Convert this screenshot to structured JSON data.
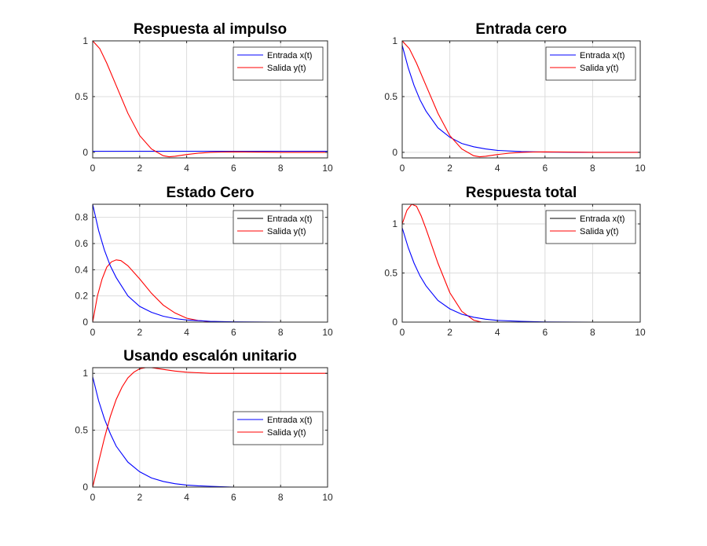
{
  "colors": {
    "input_blue": "#0000ff",
    "input_black": "#000000",
    "output_red": "#ff0000",
    "grid": "#dcdcdc",
    "axis": "#262626"
  },
  "chart_data": [
    {
      "type": "line",
      "title": "Respuesta al impulso",
      "xlim": [
        0,
        10
      ],
      "ylim": [
        -0.05,
        1.0
      ],
      "xticks": [
        "0",
        "2",
        "4",
        "6",
        "8",
        "10"
      ],
      "yticks": [
        {
          "v": 0,
          "label": "0"
        },
        {
          "v": 0.5,
          "label": "0.5"
        },
        {
          "v": 1,
          "label": "1"
        }
      ],
      "grid": true,
      "legend": "top-right",
      "series": [
        {
          "name": "Entrada x(t)",
          "color": "#0000ff",
          "x": [
            0,
            10
          ],
          "y": [
            0.01,
            0.01
          ]
        },
        {
          "name": "Salida y(t)",
          "color": "#ff0000",
          "x": [
            0,
            0.3,
            0.6,
            1.0,
            1.5,
            2.0,
            2.5,
            3.0,
            3.25,
            3.5,
            4.0,
            4.5,
            5.0,
            5.5,
            6.0,
            7.0,
            8.0,
            10
          ],
          "y": [
            1.0,
            0.93,
            0.8,
            0.6,
            0.35,
            0.15,
            0.03,
            -0.03,
            -0.04,
            -0.035,
            -0.02,
            -0.008,
            0.0,
            0.003,
            0.004,
            0.002,
            0.0,
            0.0
          ]
        }
      ]
    },
    {
      "type": "line",
      "title": "Entrada cero",
      "xlim": [
        0,
        10
      ],
      "ylim": [
        -0.05,
        1.0
      ],
      "xticks": [
        "0",
        "2",
        "4",
        "6",
        "8",
        "10"
      ],
      "yticks": [
        {
          "v": 0,
          "label": "0"
        },
        {
          "v": 0.5,
          "label": "0.5"
        },
        {
          "v": 1,
          "label": "1"
        }
      ],
      "grid": true,
      "legend": "top-right",
      "series": [
        {
          "name": "Entrada x(t)",
          "color": "#0000ff",
          "x": [
            0,
            0.25,
            0.5,
            0.75,
            1.0,
            1.5,
            2.0,
            2.5,
            3.0,
            3.5,
            4.0,
            5.0,
            6.0,
            8.0,
            10
          ],
          "y": [
            0.96,
            0.76,
            0.6,
            0.47,
            0.37,
            0.22,
            0.135,
            0.08,
            0.05,
            0.03,
            0.018,
            0.007,
            0.002,
            0.0,
            0.0
          ]
        },
        {
          "name": "Salida y(t)",
          "color": "#ff0000",
          "x": [
            0,
            0.3,
            0.6,
            1.0,
            1.5,
            2.0,
            2.5,
            3.0,
            3.25,
            3.5,
            4.0,
            4.5,
            5.0,
            5.5,
            6.0,
            7.0,
            8.0,
            10
          ],
          "y": [
            1.0,
            0.93,
            0.8,
            0.6,
            0.35,
            0.15,
            0.03,
            -0.03,
            -0.04,
            -0.035,
            -0.02,
            -0.008,
            0.0,
            0.003,
            0.004,
            0.002,
            0.0,
            0.0
          ]
        }
      ]
    },
    {
      "type": "line",
      "title": "Estado Cero",
      "xlim": [
        0,
        10
      ],
      "ylim": [
        0,
        0.9
      ],
      "xticks": [
        "0",
        "2",
        "4",
        "6",
        "8",
        "10"
      ],
      "yticks": [
        {
          "v": 0,
          "label": "0"
        },
        {
          "v": 0.2,
          "label": "0.2"
        },
        {
          "v": 0.4,
          "label": "0.4"
        },
        {
          "v": 0.6,
          "label": "0.6"
        },
        {
          "v": 0.8,
          "label": "0.8"
        }
      ],
      "grid": true,
      "legend": "top-right",
      "series": [
        {
          "name": "Entrada x(t)",
          "color": "#000000",
          "legend_only": true,
          "x": [],
          "y": []
        },
        {
          "name": "Salida y(t)",
          "color": "#ff0000",
          "x": [
            0,
            0.2,
            0.4,
            0.6,
            0.8,
            1.0,
            1.2,
            1.5,
            2.0,
            2.5,
            3.0,
            3.5,
            4.0,
            4.5,
            5.0,
            6.0,
            8.0,
            10
          ],
          "y": [
            0,
            0.2,
            0.33,
            0.42,
            0.46,
            0.475,
            0.47,
            0.43,
            0.33,
            0.22,
            0.13,
            0.07,
            0.03,
            0.012,
            0.004,
            0.0,
            0.0,
            0.0
          ]
        },
        {
          "name": "",
          "color": "#0000ff",
          "unlisted": true,
          "x": [
            0,
            0.25,
            0.5,
            0.75,
            1.0,
            1.5,
            2.0,
            2.5,
            3.0,
            3.5,
            4.0,
            5.0,
            6.0,
            8.0,
            10
          ],
          "y": [
            0.9,
            0.7,
            0.55,
            0.43,
            0.34,
            0.2,
            0.12,
            0.075,
            0.045,
            0.027,
            0.016,
            0.006,
            0.002,
            0.0,
            0.0
          ]
        }
      ]
    },
    {
      "type": "line",
      "title": "Respuesta total",
      "xlim": [
        0,
        10
      ],
      "ylim": [
        0,
        1.2
      ],
      "xticks": [
        "0",
        "2",
        "4",
        "6",
        "8",
        "10"
      ],
      "yticks": [
        {
          "v": 0,
          "label": "0"
        },
        {
          "v": 0.5,
          "label": "0.5"
        },
        {
          "v": 1,
          "label": "1"
        }
      ],
      "grid": true,
      "legend": "top-right",
      "series": [
        {
          "name": "Entrada x(t)",
          "color": "#000000",
          "legend_only": true,
          "x": [],
          "y": []
        },
        {
          "name": "Salida y(t)",
          "color": "#ff0000",
          "x": [
            0,
            0.2,
            0.4,
            0.6,
            0.8,
            1.0,
            1.5,
            2.0,
            2.5,
            3.0,
            3.5,
            4.0,
            5.0,
            6.0,
            8.0,
            10
          ],
          "y": [
            1.0,
            1.14,
            1.2,
            1.18,
            1.08,
            0.95,
            0.6,
            0.3,
            0.11,
            0.02,
            -0.01,
            -0.01,
            -0.003,
            0.0,
            0.0,
            0.0
          ]
        },
        {
          "name": "",
          "color": "#0000ff",
          "unlisted": true,
          "x": [
            0,
            0.25,
            0.5,
            0.75,
            1.0,
            1.5,
            2.0,
            2.5,
            3.0,
            3.5,
            4.0,
            5.0,
            6.0,
            8.0,
            10
          ],
          "y": [
            0.96,
            0.76,
            0.6,
            0.47,
            0.37,
            0.22,
            0.135,
            0.08,
            0.05,
            0.03,
            0.018,
            0.007,
            0.002,
            0.0,
            0.0
          ]
        }
      ]
    },
    {
      "type": "line",
      "title": "Usando escalón unitario",
      "xlim": [
        0,
        10
      ],
      "ylim": [
        0,
        1.05
      ],
      "xticks": [
        "0",
        "2",
        "4",
        "6",
        "8",
        "10"
      ],
      "yticks": [
        {
          "v": 0,
          "label": "0"
        },
        {
          "v": 0.5,
          "label": "0.5"
        },
        {
          "v": 1,
          "label": "1"
        }
      ],
      "grid": true,
      "legend": "right",
      "series": [
        {
          "name": "Entrada x(t)",
          "color": "#0000ff",
          "x": [
            0,
            0.25,
            0.5,
            0.75,
            1.0,
            1.5,
            2.0,
            2.5,
            3.0,
            3.5,
            4.0,
            4.5,
            5.0,
            6.0,
            8.0,
            10
          ],
          "y": [
            0.97,
            0.76,
            0.6,
            0.47,
            0.36,
            0.22,
            0.135,
            0.08,
            0.05,
            0.03,
            0.018,
            0.011,
            0.007,
            0.0,
            0.0,
            0.0
          ]
        },
        {
          "name": "Salida y(t)",
          "color": "#ff0000",
          "x": [
            0,
            0.25,
            0.5,
            0.75,
            1.0,
            1.25,
            1.5,
            1.75,
            2.0,
            2.25,
            2.5,
            3.0,
            3.5,
            4.0,
            5.0,
            6.0,
            8.0,
            10
          ],
          "y": [
            0,
            0.22,
            0.43,
            0.62,
            0.77,
            0.88,
            0.96,
            1.01,
            1.04,
            1.05,
            1.05,
            1.035,
            1.02,
            1.01,
            1.0,
            1.0,
            1.0,
            1.0
          ]
        }
      ]
    }
  ]
}
